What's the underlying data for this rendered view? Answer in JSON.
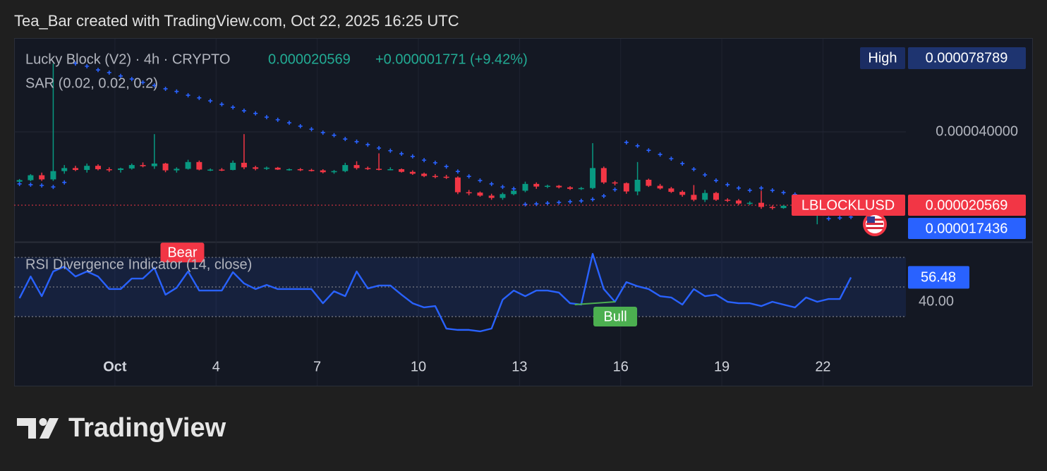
{
  "header": "Tea_Bar created with TradingView.com, Oct 22, 2025 16:25 UTC",
  "brand": "TradingView",
  "chart_data": [
    {
      "type": "candlestick",
      "title": "Lucky Block (V2) · 4h · CRYPTO",
      "symbol": "LBLOCKLUSD",
      "last_price": {
        "value": 2.0569e-05,
        "label": "0.000020569"
      },
      "change": "+0.000001771 (+9.42%)",
      "high": {
        "name": "High",
        "value": 7.8789e-05,
        "label": "0.000078789"
      },
      "up_color": "#089981",
      "down_color": "#f23645",
      "last_color": "#f23645",
      "legend_value_color": "#22ab94",
      "grid": true,
      "xlim": [
        -1.99,
        24.46
      ],
      "xticks": [
        {
          "value": 1,
          "label": "Oct"
        },
        4,
        7,
        10,
        13,
        16,
        19,
        22
      ],
      "ylim": [
        1.085e-05,
        6.485e-05
      ],
      "yticks": [
        {
          "value": 4e-05,
          "label": "0.000040000"
        }
      ],
      "candles": {
        "x": [
          -1.83,
          -1.5,
          -1.17,
          -0.83,
          -0.5,
          -0.17,
          0.17,
          0.5,
          0.83,
          1.17,
          1.5,
          1.83,
          2.17,
          2.5,
          2.83,
          3.17,
          3.5,
          3.83,
          4.17,
          4.5,
          4.83,
          5.17,
          5.5,
          5.83,
          6.17,
          6.5,
          6.83,
          7.17,
          7.5,
          7.83,
          8.17,
          8.5,
          8.83,
          9.17,
          9.5,
          9.83,
          10.17,
          10.5,
          10.83,
          11.17,
          11.5,
          11.83,
          12.17,
          12.5,
          12.83,
          13.17,
          13.5,
          13.83,
          14.17,
          14.5,
          14.83,
          15.17,
          15.5,
          15.83,
          16.17,
          16.5,
          16.83,
          17.17,
          17.5,
          17.83,
          18.17,
          18.5,
          18.83,
          19.17,
          19.5,
          19.83,
          20.17,
          20.5,
          20.83,
          21.17,
          21.5,
          21.83
        ],
        "open": [
          2.68e-05,
          2.72e-05,
          2.85e-05,
          2.74e-05,
          2.96e-05,
          3.04e-05,
          2.99e-05,
          3.1e-05,
          3.01e-05,
          2.99e-05,
          3.03e-05,
          3.12e-05,
          3.09e-05,
          3.16e-05,
          2.98e-05,
          3.02e-05,
          3.2e-05,
          3e-05,
          3e-05,
          2.99e-05,
          3.18e-05,
          3.06e-05,
          3.02e-05,
          3.05e-05,
          3e-05,
          3.01e-05,
          2.99e-05,
          2.98e-05,
          2.93e-05,
          2.96e-05,
          3.12e-05,
          3.04e-05,
          3.02e-05,
          3e-05,
          3.01e-05,
          2.94e-05,
          2.89e-05,
          2.83e-05,
          2.81e-05,
          2.79e-05,
          2.4e-05,
          2.39e-05,
          2.31e-05,
          2.25e-05,
          2.35e-05,
          2.44e-05,
          2.62e-05,
          2.55e-05,
          2.57e-05,
          2.53e-05,
          2.49e-05,
          2.51e-05,
          3.04e-05,
          2.66e-05,
          2.64e-05,
          2.42e-05,
          2.73e-05,
          2.57e-05,
          2.5e-05,
          2.41e-05,
          2.33e-05,
          2.2e-05,
          2.38e-05,
          2.2e-05,
          2.18e-05,
          2.1e-05,
          2.12e-05,
          2.01e-05,
          1.98e-05,
          2.04e-05,
          2e-05,
          1.96e-05
        ],
        "high": [
          2.75e-05,
          2.88e-05,
          2.92e-05,
          5.81e-05,
          3.12e-05,
          3.1e-05,
          3.16e-05,
          3.14e-05,
          3.06e-05,
          3.05e-05,
          3.16e-05,
          3.19e-05,
          3.94e-05,
          3.18e-05,
          3.06e-05,
          3.26e-05,
          3.24e-05,
          3.03e-05,
          3.04e-05,
          3.24e-05,
          3.94e-05,
          3.1e-05,
          3.08e-05,
          3.07e-05,
          3.03e-05,
          3.04e-05,
          3.02e-05,
          3.01e-05,
          2.99e-05,
          3.18e-05,
          3.22e-05,
          3.08e-05,
          3.43e-05,
          3.06e-05,
          3.03e-05,
          2.98e-05,
          2.92e-05,
          2.88e-05,
          2.86e-05,
          2.82e-05,
          2.46e-05,
          2.42e-05,
          2.36e-05,
          2.39e-05,
          2.48e-05,
          2.68e-05,
          2.66e-05,
          2.6e-05,
          2.59e-05,
          2.56e-05,
          2.54e-05,
          3.7e-05,
          3.08e-05,
          2.7e-05,
          2.66e-05,
          3.2e-05,
          2.76e-05,
          2.62e-05,
          2.54e-05,
          2.45e-05,
          2.59e-05,
          2.46e-05,
          2.41e-05,
          2.24e-05,
          2.22e-05,
          2.16e-05,
          2.44e-05,
          2.05e-05,
          2.06e-05,
          2.16e-05,
          2.04e-05,
          2.08e-05
        ],
        "low": [
          2.63e-05,
          2.69e-05,
          2.7e-05,
          2.7e-05,
          2.89e-05,
          2.96e-05,
          2.92e-05,
          2.98e-05,
          2.94e-05,
          2.92e-05,
          3e-05,
          3.06e-05,
          3.02e-05,
          2.93e-05,
          2.92e-05,
          3e-05,
          2.98e-05,
          2.96e-05,
          2.96e-05,
          2.98e-05,
          3.01e-05,
          2.98e-05,
          2.99e-05,
          2.99e-05,
          2.97e-05,
          2.96e-05,
          2.95e-05,
          2.9e-05,
          2.89e-05,
          2.93e-05,
          3e-05,
          2.99e-05,
          2.98e-05,
          2.98e-05,
          2.92e-05,
          2.86e-05,
          2.8e-05,
          2.77e-05,
          2.75e-05,
          2.35e-05,
          2.32e-05,
          2.28e-05,
          2.2e-05,
          2.2e-05,
          2.32e-05,
          2.4e-05,
          2.49e-05,
          2.51e-05,
          2.5e-05,
          2.46e-05,
          2.46e-05,
          2.48e-05,
          2.62e-05,
          2.58e-05,
          2.36e-05,
          2.32e-05,
          2.54e-05,
          2.47e-05,
          2.38e-05,
          2.28e-05,
          2.16e-05,
          2.14e-05,
          2.17e-05,
          2.14e-05,
          2.06e-05,
          2.06e-05,
          1.96e-05,
          1.94e-05,
          1.96e-05,
          1.99e-05,
          1.91e-05,
          1.55e-05
        ],
        "close": [
          2.72e-05,
          2.85e-05,
          2.74e-05,
          2.96e-05,
          3.04e-05,
          2.99e-05,
          3.1e-05,
          3.01e-05,
          2.99e-05,
          3.03e-05,
          3.12e-05,
          3.09e-05,
          3.16e-05,
          2.98e-05,
          3.02e-05,
          3.2e-05,
          3e-05,
          3e-05,
          2.99e-05,
          3.18e-05,
          3.06e-05,
          3.02e-05,
          3.05e-05,
          3e-05,
          3.01e-05,
          2.99e-05,
          2.98e-05,
          2.93e-05,
          2.96e-05,
          3.12e-05,
          3.04e-05,
          3.02e-05,
          3e-05,
          3.01e-05,
          2.94e-05,
          2.89e-05,
          2.83e-05,
          2.81e-05,
          2.79e-05,
          2.4e-05,
          2.39e-05,
          2.31e-05,
          2.25e-05,
          2.35e-05,
          2.44e-05,
          2.62e-05,
          2.55e-05,
          2.57e-05,
          2.53e-05,
          2.49e-05,
          2.51e-05,
          3.04e-05,
          2.66e-05,
          2.64e-05,
          2.42e-05,
          2.73e-05,
          2.57e-05,
          2.5e-05,
          2.41e-05,
          2.33e-05,
          2.2e-05,
          2.38e-05,
          2.2e-05,
          2.18e-05,
          2.1e-05,
          2.12e-05,
          2.01e-05,
          1.98e-05,
          2.04e-05,
          2e-05,
          1.96e-05,
          2.0569e-05
        ]
      },
      "series": [
        {
          "name": "SAR (0.02, 0.02, 0.2)",
          "color": "#2962ff",
          "style": "cross",
          "last_value": {
            "value": 1.7436e-05,
            "label": "0.000017436"
          },
          "x": [
            -1.83,
            -1.5,
            -1.17,
            -0.83,
            -0.5,
            -0.17,
            0.17,
            0.5,
            0.83,
            1.17,
            1.5,
            1.83,
            2.17,
            2.5,
            2.83,
            3.17,
            3.5,
            3.83,
            4.17,
            4.5,
            4.83,
            5.17,
            5.5,
            5.83,
            6.17,
            6.5,
            6.83,
            7.17,
            7.5,
            7.83,
            8.17,
            8.5,
            8.83,
            9.17,
            9.5,
            9.83,
            10.17,
            10.5,
            10.83,
            11.17,
            11.5,
            11.83,
            12.17,
            12.5,
            12.83,
            13.17,
            13.5,
            13.83,
            14.17,
            14.5,
            14.83,
            15.17,
            15.5,
            15.83,
            16.17,
            16.5,
            16.83,
            17.17,
            17.5,
            17.83,
            18.17,
            18.5,
            18.83,
            19.17,
            19.5,
            19.83,
            20.17,
            20.5,
            20.83,
            21.17,
            21.5,
            21.83,
            22.17,
            22.5,
            22.83
          ],
          "values": [
            2.62e-05,
            2.6e-05,
            2.58e-05,
            2.54e-05,
            2.66e-05,
            5.81e-05,
            5.74e-05,
            5.64e-05,
            5.57e-05,
            5.48e-05,
            5.4e-05,
            5.31e-05,
            5.23e-05,
            5.14e-05,
            5.07e-05,
            4.97e-05,
            4.9e-05,
            4.82e-05,
            4.73e-05,
            4.65e-05,
            4.56e-05,
            4.49e-05,
            4.39e-05,
            4.32e-05,
            4.24e-05,
            4.15e-05,
            4.07e-05,
            3.98e-05,
            3.91e-05,
            3.81e-05,
            3.74e-05,
            3.66e-05,
            3.57e-05,
            3.5e-05,
            3.42e-05,
            3.35e-05,
            3.25e-05,
            3.18e-05,
            3.08e-05,
            2.95e-05,
            2.82e-05,
            2.71e-05,
            2.62e-05,
            2.54e-05,
            2.49e-05,
            2.08e-05,
            2.09e-05,
            2.11e-05,
            2.13e-05,
            2.15e-05,
            2.17e-05,
            2.21e-05,
            2.3e-05,
            2.47e-05,
            3.72e-05,
            3.63e-05,
            3.51e-05,
            3.4e-05,
            3.29e-05,
            3.16e-05,
            3.01e-05,
            2.86e-05,
            2.71e-05,
            2.6e-05,
            2.51e-05,
            2.45e-05,
            2.51e-05,
            2.45e-05,
            2.39e-05,
            2.34e-05,
            2.28e-05,
            2.21e-05,
            1.7e-05,
            1.72e-05,
            1.7436e-05
          ]
        }
      ]
    },
    {
      "type": "line",
      "title": "RSI Divergence Indicator (14, close)",
      "ylim": [
        5.7,
        80.5
      ],
      "yticks": [
        {
          "value": 40,
          "label": "40.00"
        }
      ],
      "band": [
        30,
        70
      ],
      "hlines": [
        70,
        50,
        30
      ],
      "series": [
        {
          "color": "#2962ff",
          "x": [
            -1.83,
            -1.5,
            -1.17,
            -0.83,
            -0.5,
            -0.17,
            0.17,
            0.5,
            0.83,
            1.17,
            1.5,
            1.83,
            2.17,
            2.5,
            2.83,
            3.17,
            3.5,
            3.83,
            4.17,
            4.5,
            4.83,
            5.17,
            5.5,
            5.83,
            6.17,
            6.5,
            6.83,
            7.17,
            7.5,
            7.83,
            8.17,
            8.5,
            8.83,
            9.17,
            9.5,
            9.83,
            10.17,
            10.5,
            10.83,
            11.17,
            11.5,
            11.83,
            12.17,
            12.5,
            12.83,
            13.17,
            13.5,
            13.83,
            14.17,
            14.5,
            14.83,
            15.17,
            15.5,
            15.83,
            16.17,
            16.5,
            16.83,
            17.17,
            17.5,
            17.83,
            18.17,
            18.5,
            18.83,
            19.17,
            19.5,
            19.83,
            20.17,
            20.5,
            20.83,
            21.17,
            21.5,
            21.83,
            22.17,
            22.5,
            22.83
          ],
          "values": [
            42.4,
            57.1,
            43.8,
            60.5,
            63.8,
            57.1,
            60.5,
            57.1,
            48.6,
            48.6,
            55.7,
            55.7,
            62.9,
            44.8,
            49.5,
            60.5,
            47.6,
            47.6,
            47.6,
            60.0,
            52.4,
            48.6,
            51.4,
            48.6,
            48.6,
            48.6,
            48.6,
            39.0,
            47.1,
            43.8,
            60.5,
            49.0,
            51.0,
            51.0,
            44.8,
            39.0,
            36.2,
            37.1,
            21.9,
            21.0,
            21.0,
            20.0,
            21.9,
            41.4,
            47.6,
            43.8,
            47.6,
            47.6,
            46.2,
            39.0,
            38.1,
            72.4,
            48.6,
            40.0,
            53.3,
            50.5,
            48.6,
            43.8,
            42.9,
            38.1,
            48.6,
            43.8,
            44.8,
            40.0,
            39.0,
            39.0,
            37.1,
            40.0,
            38.1,
            36.2,
            42.9,
            40.0,
            41.9,
            41.9,
            56.48
          ]
        }
      ],
      "annotations": [
        {
          "text": "Bear",
          "color": "#f23645",
          "x": 3.0,
          "y": 73.3
        },
        {
          "text": "Bull",
          "color": "#4caf50",
          "x": 15.84,
          "y": 30,
          "from": [
            14.64,
            38.1
          ],
          "to": [
            15.84,
            40
          ]
        }
      ]
    }
  ]
}
